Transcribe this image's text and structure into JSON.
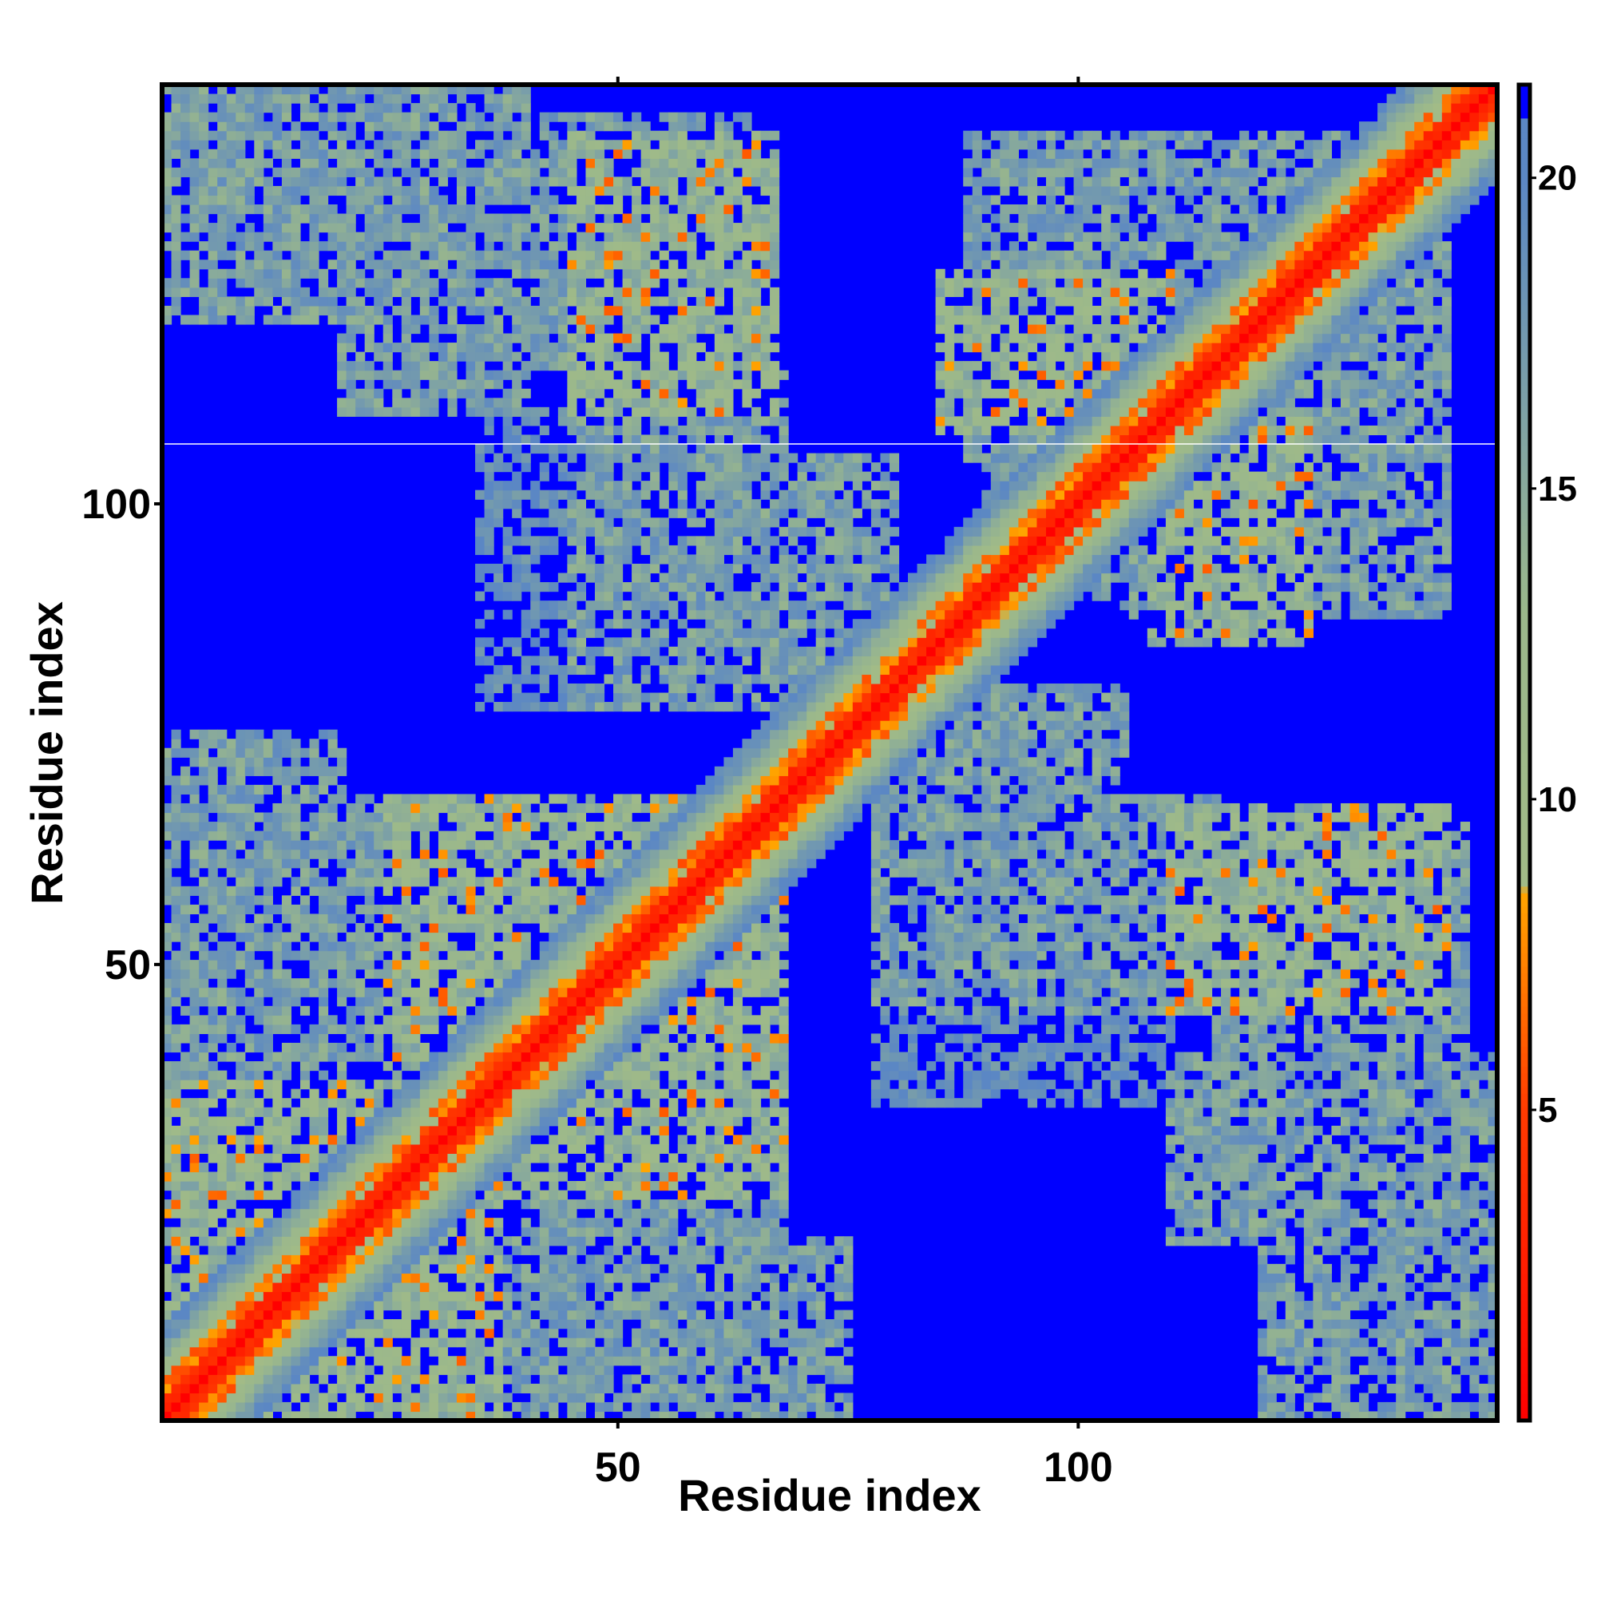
{
  "chart_data": {
    "type": "heatmap",
    "title": "",
    "xlabel": "Residue index",
    "ylabel": "Residue index",
    "n_residues": 145,
    "xlim": [
      0.5,
      145.5
    ],
    "ylim": [
      0.5,
      145.5
    ],
    "x_ticks": [
      50,
      100
    ],
    "y_ticks": [
      50,
      100
    ],
    "colorbar": {
      "range": [
        0,
        21.5
      ],
      "ticks": [
        5,
        10,
        15,
        20
      ],
      "cutoff": 21,
      "stops": [
        {
          "value": 0,
          "color": "#ff0000"
        },
        {
          "value": 5,
          "color": "#ff3b00"
        },
        {
          "value": 8.5,
          "color": "#ffa500"
        },
        {
          "value": 8.6,
          "color": "#a2bb87"
        },
        {
          "value": 13,
          "color": "#9bb88b"
        },
        {
          "value": 20,
          "color": "#5b87c4"
        },
        {
          "value": 21,
          "color": "#5b87c4"
        },
        {
          "value": 21.01,
          "color": "#0000ff"
        },
        {
          "value": 21.5,
          "color": "#0000ff"
        }
      ]
    },
    "background_color": "#0000ff",
    "diagonal_color": "#ff0000",
    "contact_domains": [
      {
        "x": [
          1,
          37
        ],
        "y": [
          1,
          37
        ],
        "level": "high"
      },
      {
        "x": [
          1,
          20
        ],
        "y": [
          30,
          75
        ],
        "level": "medium"
      },
      {
        "x": [
          25,
          65
        ],
        "y": [
          30,
          68
        ],
        "level": "high"
      },
      {
        "x": [
          40,
          68
        ],
        "y": [
          5,
          35
        ],
        "level": "medium"
      },
      {
        "x": [
          55,
          70
        ],
        "y": [
          5,
          18
        ],
        "level": "low"
      },
      {
        "x": [
          1,
          40
        ],
        "y": [
          120,
          145
        ],
        "level": "medium"
      },
      {
        "x": [
          38,
          65
        ],
        "y": [
          115,
          142
        ],
        "level": "medium"
      },
      {
        "x": [
          50,
          80
        ],
        "y": [
          80,
          105
        ],
        "level": "medium"
      },
      {
        "x": [
          35,
          55
        ],
        "y": [
          78,
          95
        ],
        "level": "low"
      },
      {
        "x": [
          90,
          130
        ],
        "y": [
          100,
          140
        ],
        "level": "medium"
      },
      {
        "x": [
          85,
          110
        ],
        "y": [
          108,
          125
        ],
        "level": "high"
      },
      {
        "x": [
          105,
          140
        ],
        "y": [
          88,
          115
        ],
        "level": "medium"
      },
      {
        "x": [
          78,
          115
        ],
        "y": [
          45,
          68
        ],
        "level": "medium"
      },
      {
        "x": [
          110,
          140
        ],
        "y": [
          45,
          67
        ],
        "level": "high"
      },
      {
        "x": [
          110,
          140
        ],
        "y": [
          20,
          40
        ],
        "level": "medium"
      },
      {
        "x": [
          124,
          140
        ],
        "y": [
          5,
          25
        ],
        "level": "low"
      },
      {
        "x": [
          80,
          110
        ],
        "y": [
          35,
          48
        ],
        "level": "low"
      }
    ]
  }
}
